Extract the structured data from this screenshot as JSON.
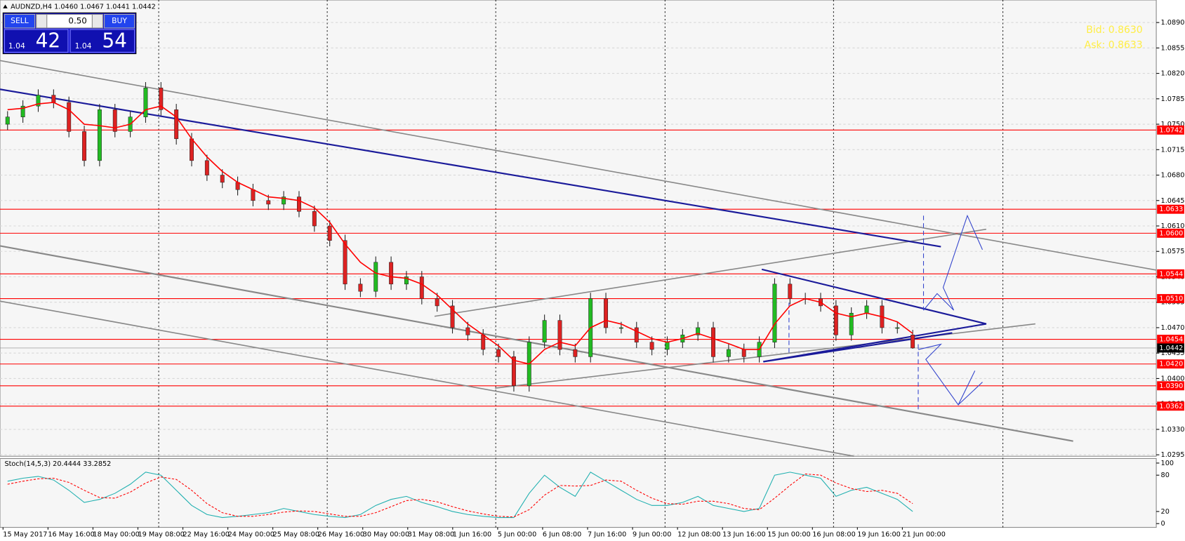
{
  "chart_data": {
    "type": "candlestick",
    "title": "AUDNZD,H4 1.0460 1.0467 1.0441 1.0442",
    "panel": {
      "sell": "SELL",
      "buy": "BUY",
      "lot": "0.50",
      "sell_big": "1.04",
      "sell_pips": "42",
      "buy_big": "1.04",
      "buy_pips": "54"
    },
    "bid": "Bid: 0.8630",
    "ask": "Ask: 0.8633",
    "categories": [
      "15 May 2017",
      "16 May 16:00",
      "18 May 00:00",
      "19 May 08:00",
      "22 May 16:00",
      "24 May 00:00",
      "25 May 08:00",
      "26 May 16:00",
      "30 May 00:00",
      "31 May 08:00",
      "1 Jun 16:00",
      "5 Jun 00:00",
      "6 Jun 08:00",
      "7 Jun 16:00",
      "9 Jun 00:00",
      "12 Jun 08:00",
      "13 Jun 16:00",
      "15 Jun 00:00",
      "16 Jun 08:00",
      "19 Jun 16:00",
      "21 Jun 00:00"
    ],
    "ohlc": [
      [
        1.075,
        1.0768,
        1.0742,
        1.076
      ],
      [
        1.076,
        1.0783,
        1.0752,
        1.0775
      ],
      [
        1.0775,
        1.0798,
        1.0767,
        1.079
      ],
      [
        1.079,
        1.0798,
        1.0772,
        1.078
      ],
      [
        1.078,
        1.0788,
        1.0732,
        1.074
      ],
      [
        1.074,
        1.0748,
        1.0692,
        1.07
      ],
      [
        1.07,
        1.0778,
        1.0692,
        1.077
      ],
      [
        1.077,
        1.0778,
        1.0732,
        1.074
      ],
      [
        1.074,
        1.0768,
        1.0732,
        1.076
      ],
      [
        1.076,
        1.0808,
        1.0752,
        1.08
      ],
      [
        1.08,
        1.0808,
        1.0762,
        1.077
      ],
      [
        1.077,
        1.0778,
        1.0722,
        1.073
      ],
      [
        1.073,
        1.0738,
        1.0692,
        1.07
      ],
      [
        1.07,
        1.0708,
        1.0672,
        1.068
      ],
      [
        1.068,
        1.0688,
        1.0662,
        1.067
      ],
      [
        1.067,
        1.0678,
        1.0652,
        1.066
      ],
      [
        1.066,
        1.0668,
        1.0637,
        1.0645
      ],
      [
        1.0645,
        1.0653,
        1.0632,
        1.064
      ],
      [
        1.064,
        1.0658,
        1.0632,
        1.065
      ],
      [
        1.065,
        1.0658,
        1.0622,
        1.063
      ],
      [
        1.063,
        1.0638,
        1.0602,
        1.061
      ],
      [
        1.061,
        1.0618,
        1.0582,
        1.059
      ],
      [
        1.059,
        1.0598,
        1.0522,
        1.053
      ],
      [
        1.053,
        1.0538,
        1.0512,
        1.052
      ],
      [
        1.052,
        1.0568,
        1.0512,
        1.056
      ],
      [
        1.056,
        1.0568,
        1.0522,
        1.053
      ],
      [
        1.053,
        1.0548,
        1.0522,
        1.054
      ],
      [
        1.054,
        1.0548,
        1.0502,
        1.051
      ],
      [
        1.051,
        1.0518,
        1.0492,
        1.05
      ],
      [
        1.05,
        1.0508,
        1.0462,
        1.047
      ],
      [
        1.047,
        1.0478,
        1.0452,
        1.046
      ],
      [
        1.046,
        1.0468,
        1.0432,
        1.044
      ],
      [
        1.044,
        1.0448,
        1.0422,
        1.043
      ],
      [
        1.043,
        1.0438,
        1.0382,
        1.039
      ],
      [
        1.039,
        1.0458,
        1.0382,
        1.045
      ],
      [
        1.045,
        1.0488,
        1.0442,
        1.048
      ],
      [
        1.048,
        1.0488,
        1.0432,
        1.044
      ],
      [
        1.044,
        1.0448,
        1.0422,
        1.043
      ],
      [
        1.043,
        1.0518,
        1.0422,
        1.051
      ],
      [
        1.051,
        1.0518,
        1.0462,
        1.047
      ],
      [
        1.047,
        1.0478,
        1.0462,
        1.047
      ],
      [
        1.047,
        1.0478,
        1.0442,
        1.045
      ],
      [
        1.045,
        1.0458,
        1.0432,
        1.044
      ],
      [
        1.044,
        1.0458,
        1.0432,
        1.045
      ],
      [
        1.045,
        1.0468,
        1.0442,
        1.046
      ],
      [
        1.046,
        1.0478,
        1.0452,
        1.047
      ],
      [
        1.047,
        1.0478,
        1.0422,
        1.043
      ],
      [
        1.043,
        1.0448,
        1.0422,
        1.044
      ],
      [
        1.044,
        1.0448,
        1.0422,
        1.043
      ],
      [
        1.043,
        1.0458,
        1.0422,
        1.045
      ],
      [
        1.045,
        1.0538,
        1.0442,
        1.053
      ],
      [
        1.053,
        1.0538,
        1.0502,
        1.051
      ],
      [
        1.051,
        1.0518,
        1.0502,
        1.051
      ],
      [
        1.051,
        1.0518,
        1.0492,
        1.05
      ],
      [
        1.05,
        1.0508,
        1.0452,
        1.046
      ],
      [
        1.046,
        1.0498,
        1.0452,
        1.049
      ],
      [
        1.049,
        1.0508,
        1.0482,
        1.05
      ],
      [
        1.05,
        1.0508,
        1.0462,
        1.047
      ],
      [
        1.047,
        1.0478,
        1.0462,
        1.047
      ],
      [
        1.046,
        1.0467,
        1.0441,
        1.0442
      ]
    ],
    "up_color": "#22bb22",
    "down_color": "#dd2222",
    "ma": {
      "color": "#ff0000",
      "values": [
        1.077,
        1.0772,
        1.0778,
        1.078,
        1.077,
        1.075,
        1.0748,
        1.0745,
        1.075,
        1.077,
        1.0775,
        1.076,
        1.073,
        1.0705,
        1.0685,
        1.067,
        1.066,
        1.065,
        1.0648,
        1.0645,
        1.0635,
        1.0615,
        1.0585,
        1.056,
        1.0545,
        1.054,
        1.0538,
        1.053,
        1.0515,
        1.0495,
        1.0475,
        1.046,
        1.0445,
        1.0425,
        1.042,
        1.044,
        1.045,
        1.0445,
        1.047,
        1.048,
        1.0475,
        1.0465,
        1.0455,
        1.045,
        1.0455,
        1.0462,
        1.0455,
        1.0448,
        1.044,
        1.044,
        1.0475,
        1.05,
        1.051,
        1.0505,
        1.049,
        1.0485,
        1.049,
        1.0485,
        1.0478,
        1.0462
      ]
    },
    "ylim": [
      1.0921,
      1.0293
    ],
    "yticks": [
      {
        "value": 1.089,
        "label": "1.0890"
      },
      {
        "value": 1.0855,
        "label": "1.0855"
      },
      {
        "value": 1.082,
        "label": "1.0820"
      },
      {
        "value": 1.0785,
        "label": "1.0785"
      },
      {
        "value": 1.075,
        "label": "1.0750"
      },
      {
        "value": 1.0715,
        "label": "1.0715"
      },
      {
        "value": 1.068,
        "label": "1.0680"
      },
      {
        "value": 1.0645,
        "label": "1.0645"
      },
      {
        "value": 1.061,
        "label": "1.0610"
      },
      {
        "value": 1.0575,
        "label": "1.0575"
      },
      {
        "value": 1.054,
        "label": "1.0540"
      },
      {
        "value": 1.0505,
        "label": "1.0505"
      },
      {
        "value": 1.047,
        "label": "1.0470"
      },
      {
        "value": 1.0435,
        "label": "1.0435"
      },
      {
        "value": 1.04,
        "label": "1.0400"
      },
      {
        "value": 1.0365,
        "label": "1.0365"
      },
      {
        "value": 1.033,
        "label": "1.0330"
      },
      {
        "value": 1.0295,
        "label": "1.0295"
      }
    ],
    "levels": [
      {
        "value": 1.0742,
        "label": "1.0742"
      },
      {
        "value": 1.0633,
        "label": "1.0633"
      },
      {
        "value": 1.06,
        "label": "1.0600"
      },
      {
        "value": 1.0544,
        "label": "1.0544"
      },
      {
        "value": 1.051,
        "label": "1.0510"
      },
      {
        "value": 1.0454,
        "label": "1.0454"
      },
      {
        "value": 1.042,
        "label": "1.0420"
      },
      {
        "value": 1.039,
        "label": "1.0390"
      },
      {
        "value": 1.0362,
        "label": "1.0362"
      }
    ],
    "level_color": "#ff0000",
    "current": {
      "value": 1.0442,
      "label": "1.0442"
    },
    "grid": true,
    "stoch": {
      "title": "Stoch(14,5,3) 20.4444 33.2852",
      "ylim": [
        0,
        100
      ],
      "yticks": [
        100,
        80,
        20,
        0
      ],
      "series": [
        {
          "name": "Main",
          "color": "#20b0b0",
          "values": [
            70,
            75,
            78,
            72,
            55,
            35,
            40,
            50,
            65,
            85,
            80,
            55,
            30,
            15,
            10,
            12,
            15,
            18,
            25,
            20,
            15,
            12,
            10,
            15,
            30,
            40,
            45,
            35,
            28,
            20,
            15,
            12,
            10,
            10,
            50,
            80,
            60,
            45,
            85,
            70,
            55,
            40,
            30,
            30,
            35,
            45,
            30,
            25,
            20,
            25,
            80,
            85,
            80,
            75,
            45,
            55,
            60,
            50,
            40,
            20
          ]
        },
        {
          "name": "Signal",
          "color": "#ff0000",
          "values": [
            65,
            70,
            74,
            75,
            68,
            55,
            43,
            42,
            52,
            67,
            77,
            73,
            55,
            33,
            18,
            12,
            12,
            15,
            19,
            21,
            20,
            16,
            12,
            12,
            18,
            28,
            38,
            40,
            36,
            28,
            21,
            16,
            12,
            11,
            23,
            47,
            63,
            62,
            63,
            72,
            70,
            55,
            42,
            33,
            32,
            37,
            37,
            33,
            25,
            23,
            42,
            63,
            82,
            80,
            67,
            58,
            53,
            55,
            50,
            33
          ]
        }
      ]
    }
  }
}
